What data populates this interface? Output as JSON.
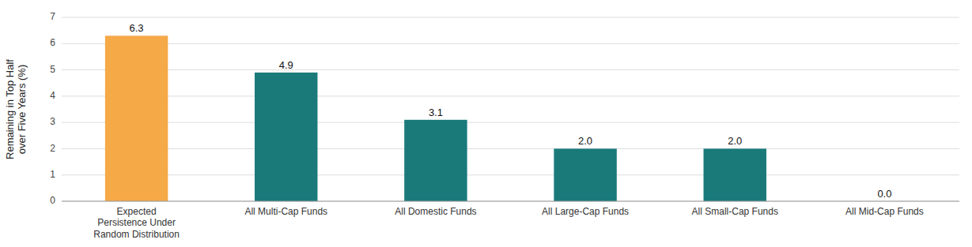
{
  "chart_data": {
    "type": "bar",
    "categories": [
      "Expected\nPersistence Under\nRandom Distribution",
      "All Multi-Cap Funds",
      "All Domestic Funds",
      "All Large-Cap Funds",
      "All Small-Cap Funds",
      "All Mid-Cap Funds"
    ],
    "values": [
      6.3,
      4.9,
      3.1,
      2.0,
      2.0,
      0.0
    ],
    "value_labels": [
      "6.3",
      "4.9",
      "3.1",
      "2.0",
      "2.0",
      "0.0"
    ],
    "colors": [
      "#F5A947",
      "#1A7A7A",
      "#1A7A7A",
      "#1A7A7A",
      "#1A7A7A",
      "#1A7A7A"
    ],
    "ylabel": "Remaining in Top Half\nover Five Years (%)",
    "ylim": [
      0,
      7
    ],
    "yticks": [
      0,
      1,
      2,
      3,
      4,
      5,
      6,
      7
    ],
    "grid": true,
    "data_labels": true
  }
}
